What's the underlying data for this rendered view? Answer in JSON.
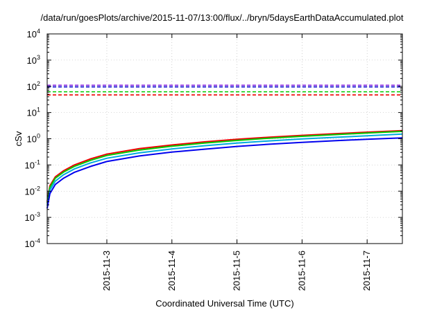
{
  "page_title": "/data/run/goesPlots/archive/2015-11-07/13:00/flux/../bryn/5daysEarthDataAccumulated.plot",
  "chart_data": {
    "type": "line",
    "title": "/data/run/goesPlots/archive/2015-11-07/13:00/flux/../bryn/5daysEarthDataAccumulated.plot",
    "xlabel": "Coordinated Universal Time (UTC)",
    "ylabel": "cSv",
    "y_scale": "log",
    "ylim": [
      0.0001,
      10000
    ],
    "xlim": [
      "2015-11-02 02:00",
      "2015-11-07 13:00"
    ],
    "grid": true,
    "legend": "none",
    "y_ticks": [
      {
        "base": "10",
        "exp": "-4",
        "value": 0.0001
      },
      {
        "base": "10",
        "exp": "-3",
        "value": 0.001
      },
      {
        "base": "10",
        "exp": "-2",
        "value": 0.01
      },
      {
        "base": "10",
        "exp": "-1",
        "value": 0.1
      },
      {
        "base": "10",
        "exp": "0",
        "value": 1
      },
      {
        "base": "10",
        "exp": "1",
        "value": 10
      },
      {
        "base": "10",
        "exp": "2",
        "value": 100
      },
      {
        "base": "10",
        "exp": "3",
        "value": 1000
      },
      {
        "base": "10",
        "exp": "4",
        "value": 10000
      }
    ],
    "x_ticks": [
      {
        "label": "2015-11-3",
        "date": "2015-11-03"
      },
      {
        "label": "2015-11-4",
        "date": "2015-11-04"
      },
      {
        "label": "2015-11-5",
        "date": "2015-11-05"
      },
      {
        "label": "2015-11-6",
        "date": "2015-11-06"
      },
      {
        "label": "2015-11-7",
        "date": "2015-11-07"
      }
    ],
    "thresholds": [
      {
        "value": 110,
        "color": "#8a2be2"
      },
      {
        "value": 95,
        "color": "#0000cc"
      },
      {
        "value": 62,
        "color": "#00cc00"
      },
      {
        "value": 47,
        "color": "#ee0000"
      }
    ],
    "series": [
      {
        "color": "#ee0000",
        "points": [
          [
            "2015-11-02 02:00",
            0.004
          ],
          [
            "2015-11-02 03:00",
            0.016
          ],
          [
            "2015-11-02 05:00",
            0.035
          ],
          [
            "2015-11-02 08:00",
            0.06
          ],
          [
            "2015-11-02 12:00",
            0.1
          ],
          [
            "2015-11-02 18:00",
            0.17
          ],
          [
            "2015-11-03 00:00",
            0.26
          ],
          [
            "2015-11-03 12:00",
            0.42
          ],
          [
            "2015-11-04 00:00",
            0.58
          ],
          [
            "2015-11-04 12:00",
            0.76
          ],
          [
            "2015-11-05 00:00",
            0.95
          ],
          [
            "2015-11-05 12:00",
            1.15
          ],
          [
            "2015-11-06 00:00",
            1.35
          ],
          [
            "2015-11-06 12:00",
            1.55
          ],
          [
            "2015-11-07 00:00",
            1.78
          ],
          [
            "2015-11-07 13:00",
            2.05
          ]
        ]
      },
      {
        "color": "#00cc00",
        "points": [
          [
            "2015-11-02 02:00",
            0.0035
          ],
          [
            "2015-11-02 03:00",
            0.014
          ],
          [
            "2015-11-02 05:00",
            0.031
          ],
          [
            "2015-11-02 08:00",
            0.053
          ],
          [
            "2015-11-02 12:00",
            0.088
          ],
          [
            "2015-11-02 18:00",
            0.15
          ],
          [
            "2015-11-03 00:00",
            0.23
          ],
          [
            "2015-11-03 12:00",
            0.37
          ],
          [
            "2015-11-04 00:00",
            0.52
          ],
          [
            "2015-11-04 12:00",
            0.68
          ],
          [
            "2015-11-05 00:00",
            0.86
          ],
          [
            "2015-11-05 12:00",
            1.05
          ],
          [
            "2015-11-06 00:00",
            1.24
          ],
          [
            "2015-11-06 12:00",
            1.43
          ],
          [
            "2015-11-07 00:00",
            1.65
          ],
          [
            "2015-11-07 13:00",
            1.9
          ]
        ]
      },
      {
        "color": "#00aadd",
        "points": [
          [
            "2015-11-02 02:00",
            0.0028
          ],
          [
            "2015-11-02 03:00",
            0.011
          ],
          [
            "2015-11-02 05:00",
            0.024
          ],
          [
            "2015-11-02 08:00",
            0.042
          ],
          [
            "2015-11-02 12:00",
            0.07
          ],
          [
            "2015-11-02 18:00",
            0.12
          ],
          [
            "2015-11-03 00:00",
            0.18
          ],
          [
            "2015-11-03 12:00",
            0.29
          ],
          [
            "2015-11-04 00:00",
            0.41
          ],
          [
            "2015-11-04 12:00",
            0.54
          ],
          [
            "2015-11-05 00:00",
            0.68
          ],
          [
            "2015-11-05 12:00",
            0.83
          ],
          [
            "2015-11-06 00:00",
            0.98
          ],
          [
            "2015-11-06 12:00",
            1.13
          ],
          [
            "2015-11-07 00:00",
            1.3
          ],
          [
            "2015-11-07 13:00",
            1.5
          ]
        ]
      },
      {
        "color": "#0000ee",
        "points": [
          [
            "2015-11-02 02:00",
            0.0022
          ],
          [
            "2015-11-02 03:00",
            0.008
          ],
          [
            "2015-11-02 05:00",
            0.018
          ],
          [
            "2015-11-02 08:00",
            0.031
          ],
          [
            "2015-11-02 12:00",
            0.052
          ],
          [
            "2015-11-02 18:00",
            0.088
          ],
          [
            "2015-11-03 00:00",
            0.135
          ],
          [
            "2015-11-03 12:00",
            0.22
          ],
          [
            "2015-11-04 00:00",
            0.31
          ],
          [
            "2015-11-04 12:00",
            0.4
          ],
          [
            "2015-11-05 00:00",
            0.51
          ],
          [
            "2015-11-05 12:00",
            0.62
          ],
          [
            "2015-11-06 00:00",
            0.73
          ],
          [
            "2015-11-06 12:00",
            0.84
          ],
          [
            "2015-11-07 00:00",
            0.96
          ],
          [
            "2015-11-07 13:00",
            1.08
          ]
        ]
      }
    ]
  }
}
